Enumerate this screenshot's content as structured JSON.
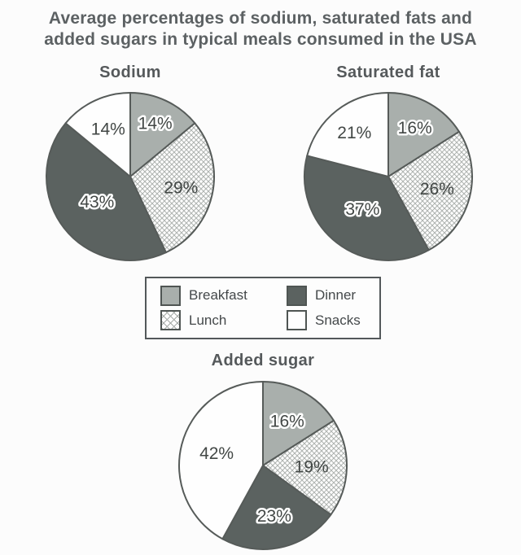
{
  "title_line1": "Average percentages of sodium, saturated fats and",
  "title_line2": "added sugars in typical meals consumed in the USA",
  "legend": {
    "items": [
      {
        "label": "Breakfast",
        "key": "breakfast"
      },
      {
        "label": "Lunch",
        "key": "lunch"
      },
      {
        "label": "Dinner",
        "key": "dinner"
      },
      {
        "label": "Snacks",
        "key": "snacks"
      }
    ]
  },
  "style": {
    "breakfast_fill": "#a9afac",
    "lunch_fill_background": "#ffffff",
    "lunch_hatch_line": "#aeb3b0",
    "dinner_fill": "#5b6260",
    "snacks_fill": "#fefefe",
    "slice_outline": "#565b59",
    "label_color": "#424745",
    "label_halo": "#ffffff",
    "title_color": "#5c6163",
    "background": "#fcfcfc"
  },
  "chart_data": [
    {
      "type": "pie",
      "title": "Sodium",
      "categories": [
        "Breakfast",
        "Lunch",
        "Dinner",
        "Snacks"
      ],
      "values": [
        14,
        29,
        43,
        14
      ],
      "unit": "%",
      "labels": [
        "14%",
        "29%",
        "43%",
        "14%"
      ],
      "start_angle_deg": 0,
      "direction": "clockwise",
      "legend_position": "below",
      "label_radius_factors": [
        0.7,
        0.62,
        0.5,
        0.62
      ]
    },
    {
      "type": "pie",
      "title": "Saturated fat",
      "categories": [
        "Breakfast",
        "Lunch",
        "Dinner",
        "Snacks"
      ],
      "values": [
        16,
        26,
        37,
        21
      ],
      "unit": "%",
      "labels": [
        "16%",
        "26%",
        "37%",
        "21%"
      ],
      "start_angle_deg": 0,
      "direction": "clockwise",
      "legend_position": "below",
      "label_radius_factors": [
        0.66,
        0.6,
        0.5,
        0.66
      ]
    },
    {
      "type": "pie",
      "title": "Added sugar",
      "categories": [
        "Breakfast",
        "Lunch",
        "Dinner",
        "Snacks"
      ],
      "values": [
        16,
        19,
        23,
        42
      ],
      "unit": "%",
      "labels": [
        "16%",
        "19%",
        "23%",
        "42%"
      ],
      "start_angle_deg": 0,
      "direction": "clockwise",
      "legend_position": "above",
      "label_radius_factors": [
        0.6,
        0.58,
        0.62,
        0.57
      ]
    }
  ]
}
